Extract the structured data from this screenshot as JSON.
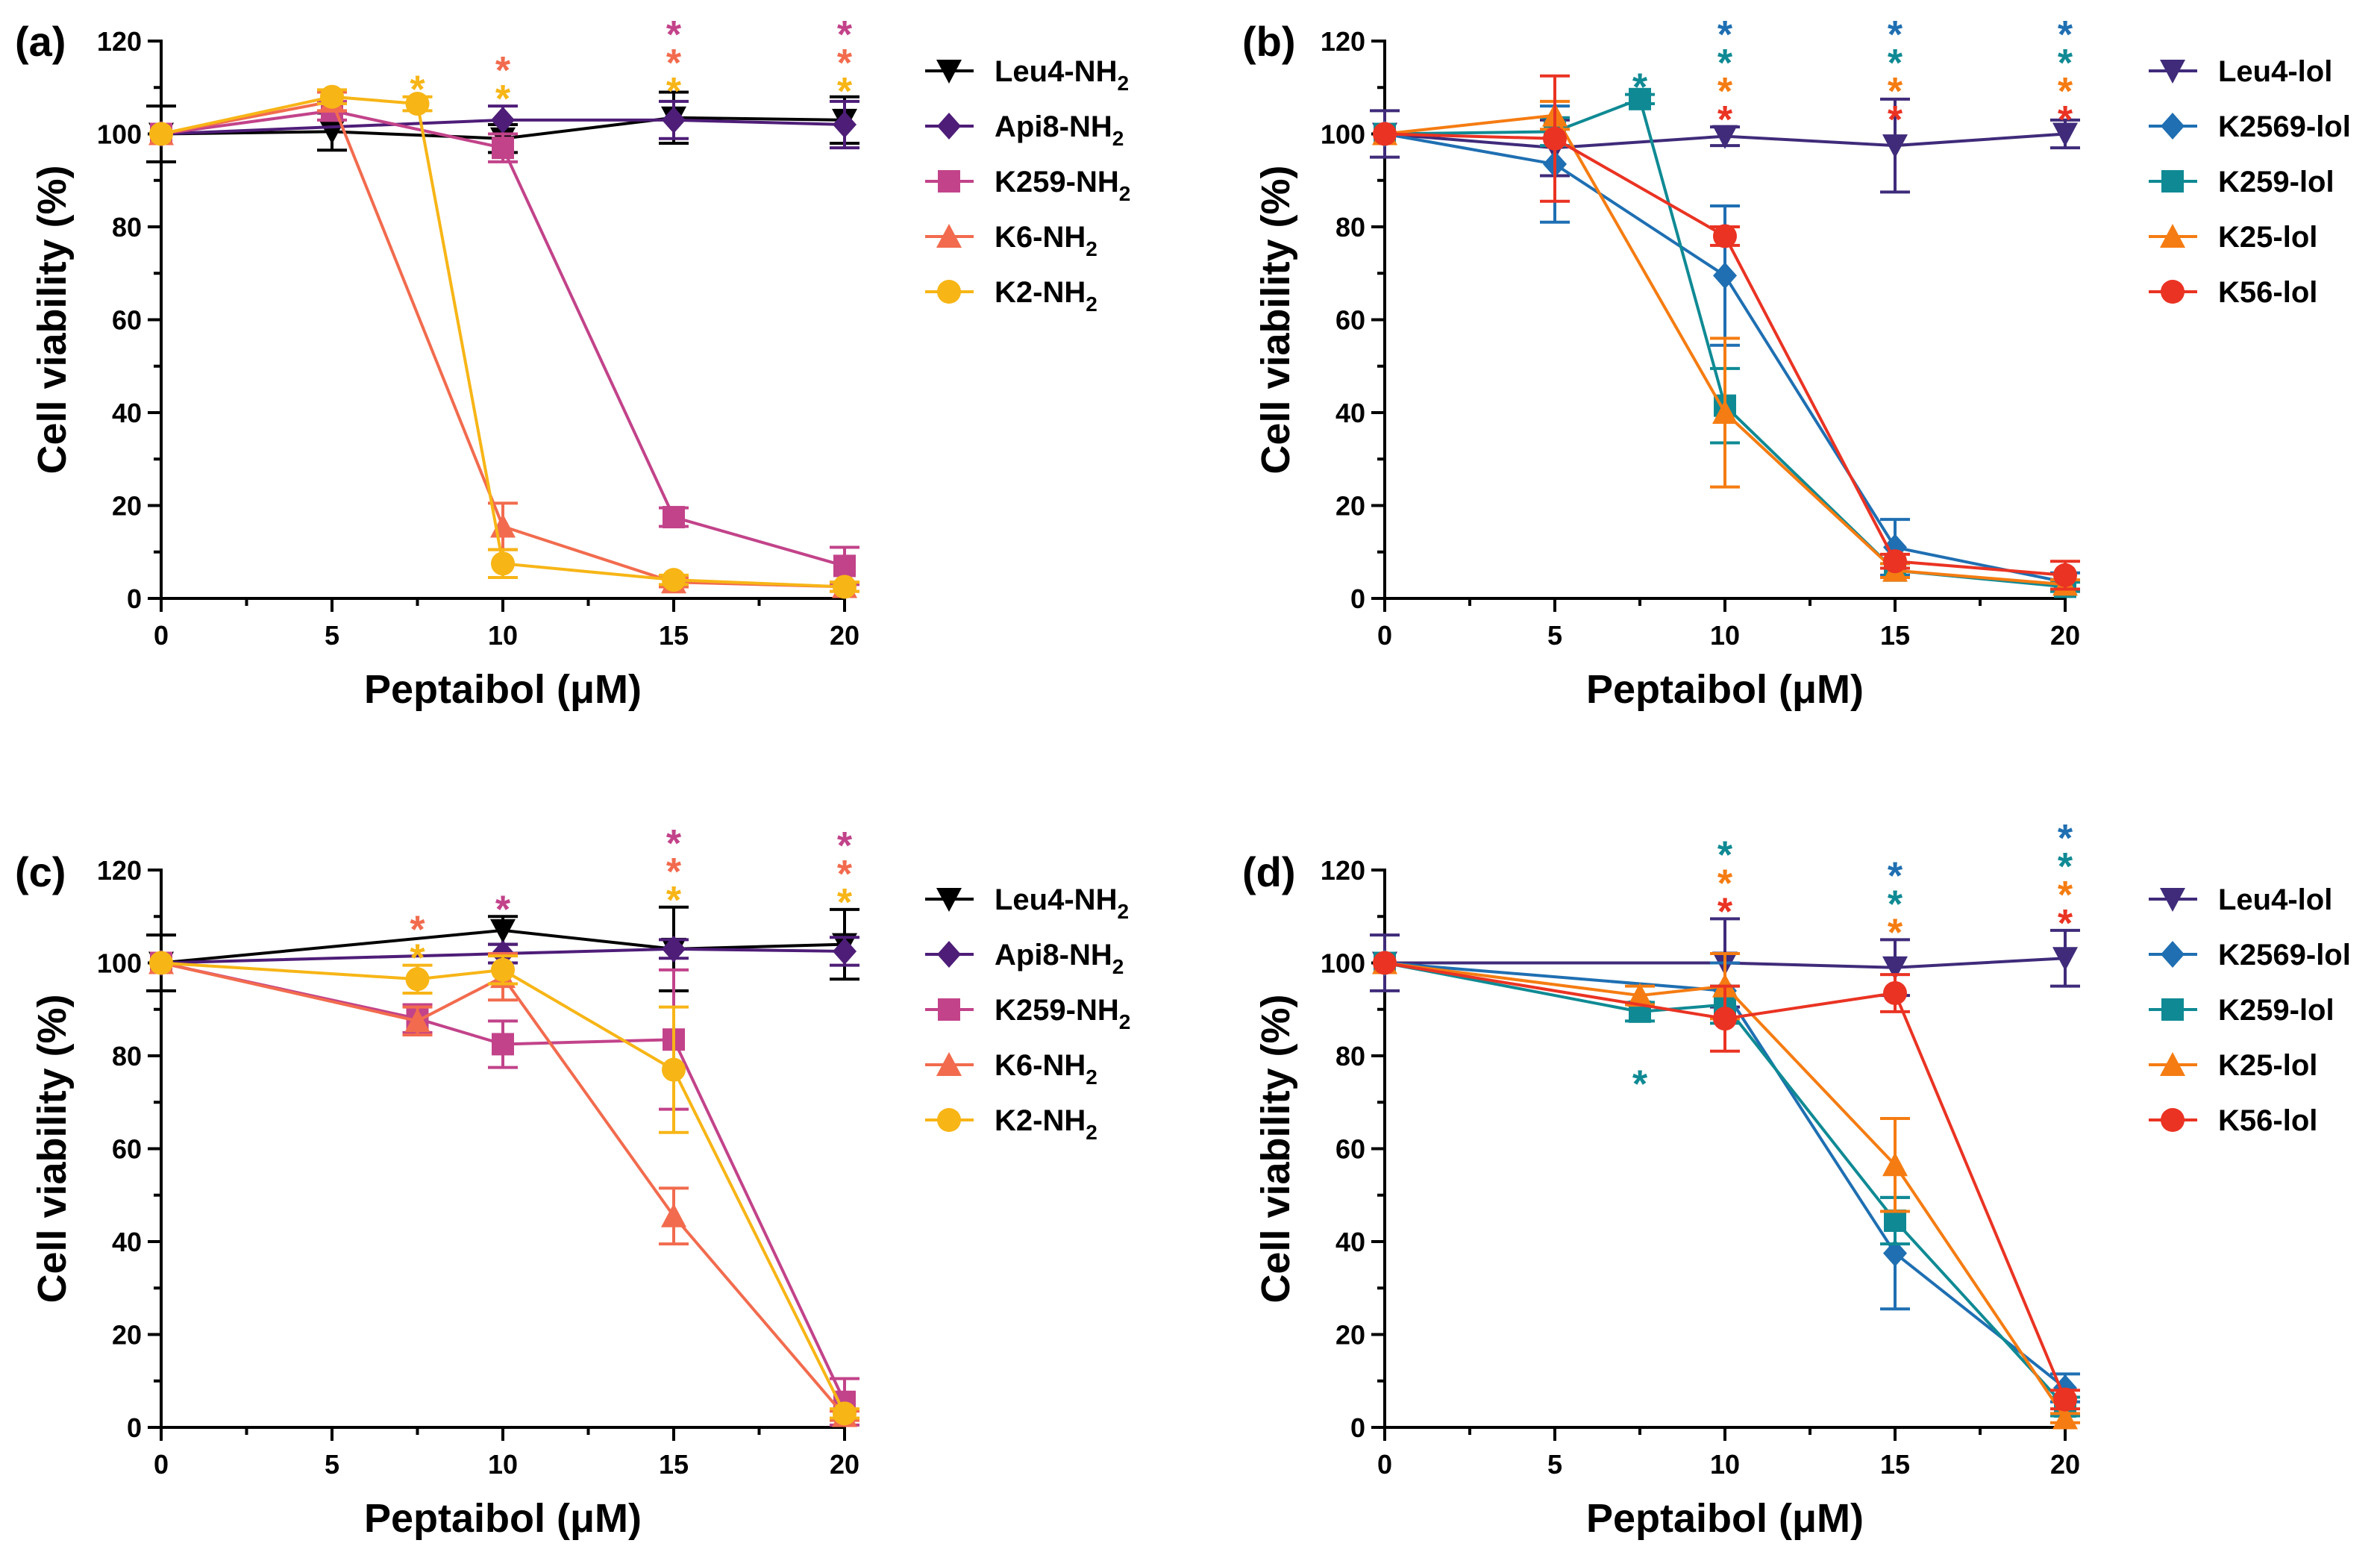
{
  "chart_data": [
    {
      "type": "line",
      "panel": "(a)",
      "xlabel": "Peptaibol (μM)",
      "ylabel": "Cell viability (%)",
      "xlim": [
        0,
        20
      ],
      "ylim": [
        0,
        120
      ],
      "xticks": [
        0,
        5,
        10,
        15,
        20
      ],
      "yticks": [
        0,
        20,
        40,
        60,
        80,
        100,
        120
      ],
      "series": [
        {
          "name": "Leu4-NH",
          "sub": "2",
          "color": "#000000",
          "marker": "triangle-down",
          "x": [
            0,
            5,
            10,
            15,
            20
          ],
          "y": [
            100,
            100.5,
            99,
            103.5,
            103
          ],
          "err": [
            6,
            4,
            3,
            5.5,
            5
          ]
        },
        {
          "name": "Api8-NH",
          "sub": "2",
          "color": "#4e1d78",
          "marker": "diamond",
          "x": [
            0,
            10,
            15,
            20
          ],
          "y": [
            100,
            103,
            103,
            102
          ],
          "err": [
            0,
            3,
            4,
            5
          ]
        },
        {
          "name": "K259-NH",
          "sub": "2",
          "color": "#c2438a",
          "marker": "square",
          "x": [
            0,
            5,
            10,
            15,
            20
          ],
          "y": [
            100,
            105,
            97,
            17.5,
            7
          ],
          "err": [
            0,
            2,
            3,
            2,
            4
          ]
        },
        {
          "name": "K6-NH",
          "sub": "2",
          "color": "#f26b4e",
          "marker": "triangle-up",
          "x": [
            0,
            5,
            10,
            15,
            20
          ],
          "y": [
            100,
            107,
            15.5,
            3.5,
            2.5
          ],
          "err": [
            0,
            2,
            5,
            1,
            1
          ]
        },
        {
          "name": "K2-NH",
          "sub": "2",
          "color": "#f7b516",
          "marker": "circle",
          "x": [
            0,
            5,
            7.5,
            10,
            15,
            20
          ],
          "y": [
            100,
            108,
            106.5,
            7.5,
            4,
            2.5
          ],
          "err": [
            0,
            1.5,
            1.5,
            3,
            1,
            1
          ]
        }
      ],
      "annotations": [
        {
          "x": 7.5,
          "stars": [
            {
              "text": "*",
              "color": "#f7b516"
            }
          ]
        },
        {
          "x": 10,
          "stars": [
            {
              "text": "*",
              "color": "#f26b4e"
            },
            {
              "text": "*",
              "color": "#f7b516"
            }
          ]
        },
        {
          "x": 15,
          "stars": [
            {
              "text": "*",
              "color": "#c2438a"
            },
            {
              "text": "*",
              "color": "#f26b4e"
            },
            {
              "text": "*",
              "color": "#f7b516"
            }
          ]
        },
        {
          "x": 20,
          "stars": [
            {
              "text": "*",
              "color": "#c2438a"
            },
            {
              "text": "*",
              "color": "#f26b4e"
            },
            {
              "text": "*",
              "color": "#f7b516"
            }
          ]
        }
      ]
    },
    {
      "type": "line",
      "panel": "(b)",
      "xlabel": "Peptaibol (μM)",
      "ylabel": "Cell viability (%)",
      "xlim": [
        0,
        20
      ],
      "ylim": [
        0,
        120
      ],
      "xticks": [
        0,
        5,
        10,
        15,
        20
      ],
      "yticks": [
        0,
        20,
        40,
        60,
        80,
        100,
        120
      ],
      "series": [
        {
          "name": "Leu4-lol",
          "sub": "",
          "color": "#3f2b7a",
          "marker": "triangle-down",
          "x": [
            0,
            5,
            10,
            15,
            20
          ],
          "y": [
            100,
            97,
            99.5,
            97.5,
            100
          ],
          "err": [
            5,
            6,
            2,
            10,
            3
          ]
        },
        {
          "name": "K2569-lol",
          "sub": "",
          "color": "#1f6fb2",
          "marker": "diamond",
          "x": [
            0,
            5,
            10,
            15,
            20
          ],
          "y": [
            100,
            93.5,
            69.5,
            11,
            3.5
          ],
          "err": [
            0,
            12.5,
            15,
            6,
            2
          ]
        },
        {
          "name": "K259-lol",
          "sub": "",
          "color": "#0f8a94",
          "marker": "square",
          "x": [
            0,
            5,
            7.5,
            10,
            15,
            20
          ],
          "y": [
            100,
            100.5,
            107.5,
            41.5,
            6,
            2.5
          ],
          "err": [
            0,
            3,
            1,
            8,
            1.5,
            1
          ]
        },
        {
          "name": "K25-lol",
          "sub": "",
          "color": "#f57c12",
          "marker": "triangle-up",
          "x": [
            0,
            5,
            10,
            15,
            20
          ],
          "y": [
            100,
            104,
            40,
            6,
            3
          ],
          "err": [
            0,
            3,
            16,
            1.5,
            1
          ]
        },
        {
          "name": "K56-lol",
          "sub": "",
          "color": "#ea3323",
          "marker": "circle",
          "x": [
            0,
            5,
            10,
            15,
            20
          ],
          "y": [
            100,
            99,
            78,
            8,
            5
          ],
          "err": [
            0,
            13.5,
            2,
            1.5,
            3
          ]
        }
      ],
      "annotations": [
        {
          "x": 7.5,
          "stars": [
            {
              "text": "*",
              "color": "#0f8a94"
            }
          ]
        },
        {
          "x": 10,
          "stars": [
            {
              "text": "*",
              "color": "#1f6fb2"
            },
            {
              "text": "*",
              "color": "#0f8a94"
            },
            {
              "text": "*",
              "color": "#f57c12"
            },
            {
              "text": "*",
              "color": "#ea3323"
            }
          ]
        },
        {
          "x": 15,
          "stars": [
            {
              "text": "*",
              "color": "#1f6fb2"
            },
            {
              "text": "*",
              "color": "#0f8a94"
            },
            {
              "text": "*",
              "color": "#f57c12"
            },
            {
              "text": "*",
              "color": "#ea3323"
            }
          ]
        },
        {
          "x": 20,
          "stars": [
            {
              "text": "*",
              "color": "#1f6fb2"
            },
            {
              "text": "*",
              "color": "#0f8a94"
            },
            {
              "text": "*",
              "color": "#f57c12"
            },
            {
              "text": "*",
              "color": "#ea3323"
            }
          ]
        }
      ]
    },
    {
      "type": "line",
      "panel": "(c)",
      "xlabel": "Peptaibol (μM)",
      "ylabel": "Cell viability (%)",
      "xlim": [
        0,
        20
      ],
      "ylim": [
        0,
        120
      ],
      "xticks": [
        0,
        5,
        10,
        15,
        20
      ],
      "yticks": [
        0,
        20,
        40,
        60,
        80,
        100,
        120
      ],
      "series": [
        {
          "name": "Leu4-NH",
          "sub": "2",
          "color": "#000000",
          "marker": "triangle-down",
          "x": [
            0,
            10,
            15,
            20
          ],
          "y": [
            100,
            107,
            103,
            104
          ],
          "err": [
            6,
            3,
            9,
            7.5
          ]
        },
        {
          "name": "Api8-NH",
          "sub": "2",
          "color": "#4e1d78",
          "marker": "diamond",
          "x": [
            0,
            10,
            15,
            20
          ],
          "y": [
            100,
            102,
            103,
            102.5
          ],
          "err": [
            0,
            2,
            2,
            3
          ]
        },
        {
          "name": "K259-NH",
          "sub": "2",
          "color": "#c2438a",
          "marker": "square",
          "x": [
            0,
            7.5,
            10,
            15,
            20
          ],
          "y": [
            100,
            88,
            82.5,
            83.5,
            5.5
          ],
          "err": [
            0,
            3,
            5,
            15,
            5
          ]
        },
        {
          "name": "K6-NH",
          "sub": "2",
          "color": "#f26b4e",
          "marker": "triangle-up",
          "x": [
            0,
            7.5,
            10,
            15,
            20
          ],
          "y": [
            100,
            87.5,
            97,
            45.5,
            2.5
          ],
          "err": [
            0,
            3,
            5,
            6,
            1
          ]
        },
        {
          "name": "K2-NH",
          "sub": "2",
          "color": "#f7b516",
          "marker": "circle",
          "x": [
            0,
            7.5,
            10,
            15,
            20
          ],
          "y": [
            100,
            96.5,
            98.5,
            77,
            3
          ],
          "err": [
            0,
            3,
            3,
            13.5,
            1
          ]
        }
      ],
      "annotations": [
        {
          "x": 7.5,
          "stars": [
            {
              "text": "*",
              "color": "#f26b4e"
            },
            {
              "text": "*",
              "color": "#f7b516"
            }
          ]
        },
        {
          "x": 10,
          "stars": [
            {
              "text": "*",
              "color": "#c2438a"
            }
          ]
        },
        {
          "x": 15,
          "stars": [
            {
              "text": "*",
              "color": "#c2438a"
            },
            {
              "text": "*",
              "color": "#f26b4e"
            },
            {
              "text": "*",
              "color": "#f7b516"
            }
          ]
        },
        {
          "x": 20,
          "stars": [
            {
              "text": "*",
              "color": "#c2438a"
            },
            {
              "text": "*",
              "color": "#f26b4e"
            },
            {
              "text": "*",
              "color": "#f7b516"
            }
          ]
        }
      ]
    },
    {
      "type": "line",
      "panel": "(d)",
      "xlabel": "Peptaibol (μM)",
      "ylabel": "Cell viability (%)",
      "xlim": [
        0,
        20
      ],
      "ylim": [
        0,
        120
      ],
      "xticks": [
        0,
        5,
        10,
        15,
        20
      ],
      "yticks": [
        0,
        20,
        40,
        60,
        80,
        100,
        120
      ],
      "series": [
        {
          "name": "Leu4-lol",
          "sub": "",
          "color": "#3f2b7a",
          "marker": "triangle-down",
          "x": [
            0,
            10,
            15,
            20
          ],
          "y": [
            100,
            100,
            99,
            101
          ],
          "err": [
            6,
            9.5,
            6,
            6
          ]
        },
        {
          "name": "K2569-lol",
          "sub": "",
          "color": "#1f6fb2",
          "marker": "diamond",
          "x": [
            0,
            10,
            15,
            20
          ],
          "y": [
            100,
            94,
            37.5,
            8.5
          ],
          "err": [
            0,
            6,
            12,
            3
          ]
        },
        {
          "name": "K259-lol",
          "sub": "",
          "color": "#0f8a94",
          "marker": "square",
          "x": [
            0,
            7.5,
            10,
            15,
            20
          ],
          "y": [
            100,
            89.5,
            91,
            44.5,
            4.5
          ],
          "err": [
            0,
            2,
            4,
            5,
            2
          ]
        },
        {
          "name": "K25-lol",
          "sub": "",
          "color": "#f57c12",
          "marker": "triangle-up",
          "x": [
            0,
            7.5,
            10,
            15,
            20
          ],
          "y": [
            100,
            93,
            95,
            56.5,
            2
          ],
          "err": [
            0,
            2,
            7,
            10,
            1
          ]
        },
        {
          "name": "K56-lol",
          "sub": "",
          "color": "#ea3323",
          "marker": "circle",
          "x": [
            0,
            10,
            15,
            20
          ],
          "y": [
            100,
            88,
            93.5,
            6
          ],
          "err": [
            0,
            7,
            4,
            2
          ]
        }
      ],
      "annotations": [
        {
          "x": 7.5,
          "below": true,
          "stars": [
            {
              "text": "*",
              "color": "#0f8a94"
            }
          ]
        },
        {
          "x": 10,
          "stars": [
            {
              "text": "*",
              "color": "#0f8a94"
            },
            {
              "text": "*",
              "color": "#f57c12"
            },
            {
              "text": "*",
              "color": "#ea3323"
            }
          ]
        },
        {
          "x": 15,
          "stars": [
            {
              "text": "*",
              "color": "#1f6fb2"
            },
            {
              "text": "*",
              "color": "#0f8a94"
            },
            {
              "text": "*",
              "color": "#f57c12"
            }
          ]
        },
        {
          "x": 20,
          "stars": [
            {
              "text": "*",
              "color": "#1f6fb2"
            },
            {
              "text": "*",
              "color": "#0f8a94"
            },
            {
              "text": "*",
              "color": "#f57c12"
            },
            {
              "text": "*",
              "color": "#ea3323"
            }
          ]
        }
      ]
    }
  ]
}
